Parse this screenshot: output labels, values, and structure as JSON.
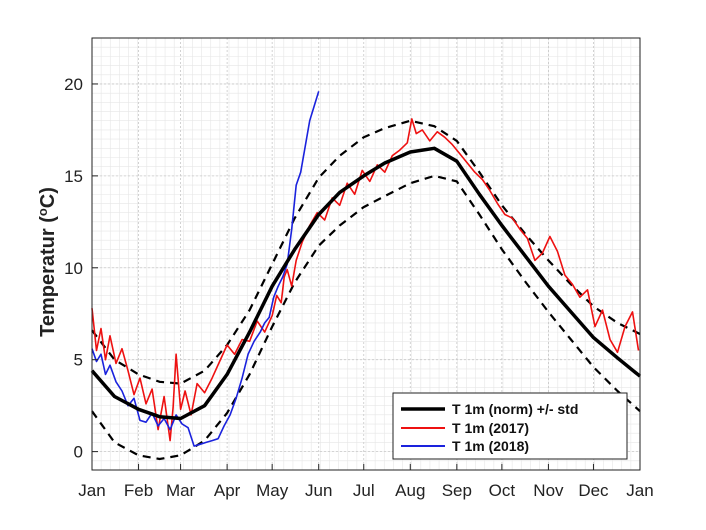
{
  "chart_data": {
    "type": "line",
    "title": "",
    "xlabel": "",
    "ylabel_main": "Temperatur (",
    "ylabel_sup": "o",
    "ylabel_tail": "C)",
    "xlim": [
      0,
      365
    ],
    "ylim": [
      -1,
      22.5
    ],
    "yticks": [
      0,
      5,
      10,
      15,
      20
    ],
    "ytick_labels": [
      "0",
      "5",
      "10",
      "15",
      "20"
    ],
    "xticks": [
      0,
      31,
      59,
      90,
      120,
      151,
      181,
      212,
      243,
      273,
      304,
      334,
      365
    ],
    "xtick_labels": [
      "Jan",
      "Feb",
      "Mar",
      "Apr",
      "May",
      "Jun",
      "Jul",
      "Aug",
      "Sep",
      "Oct",
      "Nov",
      "Dec",
      "Jan"
    ],
    "grid": true,
    "legend_position": "bottom-right",
    "series": [
      {
        "name": "T 1m (norm) +/- std",
        "role": "norm",
        "color": "#000000",
        "x": [
          0,
          15,
          31,
          45,
          59,
          75,
          90,
          105,
          120,
          135,
          151,
          165,
          181,
          195,
          212,
          228,
          243,
          258,
          273,
          289,
          304,
          319,
          334,
          350,
          365
        ],
        "y": [
          4.4,
          3.0,
          2.3,
          1.9,
          1.8,
          2.5,
          4.2,
          6.5,
          9.0,
          11.0,
          12.9,
          14.1,
          15.0,
          15.7,
          16.3,
          16.5,
          15.8,
          14.0,
          12.3,
          10.6,
          9.0,
          7.6,
          6.2,
          5.1,
          4.1
        ],
        "upper": [
          6.6,
          5.0,
          4.2,
          3.8,
          3.7,
          4.4,
          5.8,
          7.7,
          10.2,
          12.7,
          14.9,
          16.1,
          17.1,
          17.6,
          18.0,
          17.7,
          16.9,
          15.2,
          13.4,
          11.8,
          10.4,
          9.1,
          7.9,
          7.0,
          6.4
        ],
        "lower": [
          2.2,
          0.5,
          -0.2,
          -0.4,
          -0.2,
          0.6,
          2.1,
          4.2,
          6.8,
          9.2,
          11.2,
          12.3,
          13.3,
          13.9,
          14.6,
          15.0,
          14.7,
          12.9,
          11.0,
          9.2,
          7.6,
          6.1,
          4.6,
          3.3,
          2.2
        ]
      },
      {
        "name": "T 1m (2017)",
        "role": "observed",
        "color": "#ee1111",
        "x": [
          0,
          3,
          6,
          9,
          12,
          16,
          20,
          24,
          28,
          32,
          36,
          40,
          44,
          48,
          52,
          54,
          56,
          59,
          62,
          66,
          70,
          75,
          80,
          85,
          90,
          95,
          100,
          105,
          110,
          115,
          120,
          123,
          126,
          128,
          130,
          133,
          136,
          140,
          145,
          150,
          155,
          160,
          165,
          170,
          175,
          180,
          185,
          190,
          195,
          200,
          205,
          210,
          213,
          216,
          220,
          225,
          230,
          235,
          240,
          245,
          250,
          255,
          260,
          265,
          270,
          275,
          280,
          285,
          290,
          295,
          300,
          305,
          310,
          315,
          320,
          325,
          330,
          335,
          340,
          345,
          350,
          355,
          360,
          364
        ],
        "y": [
          7.8,
          5.5,
          6.7,
          5.0,
          6.3,
          4.8,
          5.6,
          4.4,
          3.1,
          4.0,
          2.6,
          3.4,
          1.2,
          3.0,
          0.6,
          2.4,
          5.3,
          2.3,
          3.3,
          2.0,
          3.7,
          3.2,
          4.0,
          4.9,
          5.8,
          5.3,
          6.1,
          6.0,
          7.1,
          6.5,
          7.4,
          8.5,
          8.1,
          9.5,
          9.9,
          9.0,
          10.4,
          11.4,
          12.3,
          13.0,
          12.6,
          13.8,
          13.4,
          14.6,
          14.0,
          15.3,
          14.7,
          15.6,
          15.2,
          16.1,
          16.4,
          16.8,
          18.1,
          17.3,
          17.5,
          16.9,
          17.4,
          17.1,
          16.7,
          16.2,
          15.7,
          15.2,
          14.8,
          14.2,
          13.5,
          12.9,
          12.7,
          12.1,
          11.6,
          10.4,
          10.8,
          11.7,
          10.9,
          9.6,
          9.1,
          8.4,
          8.8,
          6.8,
          7.7,
          6.1,
          5.4,
          6.8,
          7.6,
          5.5
        ]
      },
      {
        "name": "T 1m (2018)",
        "role": "observed",
        "color": "#1a22dd",
        "x": [
          0,
          3,
          6,
          9,
          12,
          16,
          20,
          24,
          28,
          32,
          36,
          40,
          44,
          48,
          52,
          56,
          60,
          64,
          68,
          72,
          76,
          80,
          84,
          88,
          92,
          96,
          100,
          104,
          108,
          112,
          115,
          118,
          121,
          124,
          127,
          130,
          133,
          136,
          139,
          142,
          145,
          148,
          151
        ],
        "y": [
          5.6,
          4.9,
          5.3,
          4.2,
          4.7,
          3.8,
          3.3,
          2.5,
          2.9,
          1.7,
          1.6,
          2.1,
          1.4,
          1.8,
          1.2,
          2.0,
          1.5,
          1.3,
          0.3,
          0.4,
          0.5,
          0.6,
          0.7,
          1.4,
          2.0,
          2.9,
          4.0,
          5.3,
          6.0,
          6.5,
          7.0,
          7.3,
          8.4,
          9.0,
          9.5,
          10.2,
          12.1,
          14.5,
          15.2,
          16.6,
          18.0,
          18.8,
          19.6
        ]
      }
    ]
  },
  "colors": {
    "background": "#ffffff",
    "grid_major": "#c8c8c8",
    "grid_minor": "#e6e6e6",
    "axis": "#222222"
  }
}
